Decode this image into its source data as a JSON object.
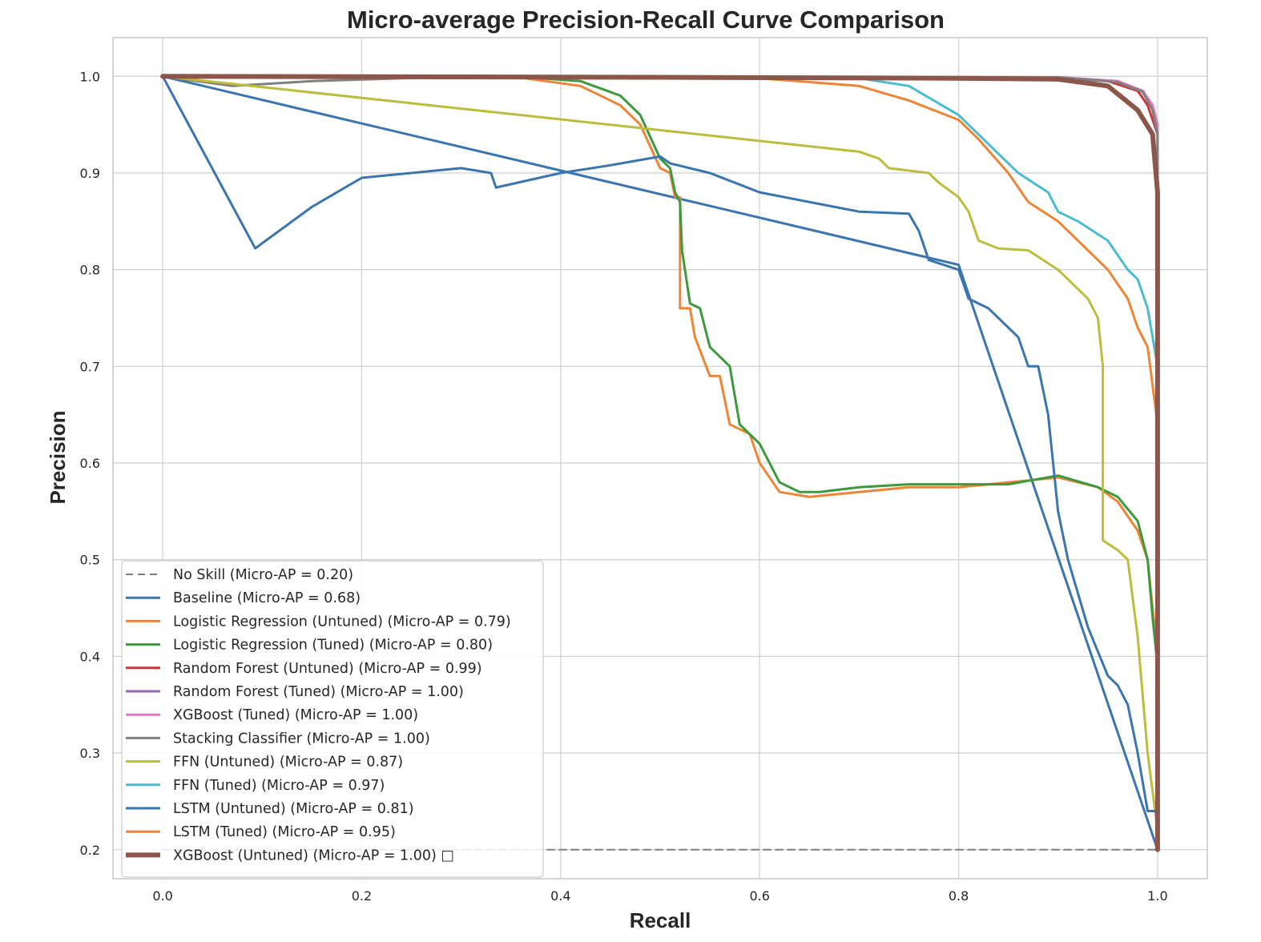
{
  "chart_data": {
    "type": "line",
    "title": "Micro-average Precision-Recall Curve Comparison",
    "xlabel": "Recall",
    "ylabel": "Precision",
    "xlim": [
      -0.05,
      1.05
    ],
    "ylim": [
      0.17,
      1.04
    ],
    "xticks": [
      0.0,
      0.2,
      0.4,
      0.6,
      0.8,
      1.0
    ],
    "yticks": [
      0.2,
      0.3,
      0.4,
      0.5,
      0.6,
      0.7,
      0.8,
      0.9,
      1.0
    ],
    "xtick_labels": [
      "0.0",
      "0.2",
      "0.4",
      "0.6",
      "0.8",
      "1.0"
    ],
    "ytick_labels": [
      "0.2",
      "0.3",
      "0.4",
      "0.5",
      "0.6",
      "0.7",
      "0.8",
      "0.9",
      "1.0"
    ],
    "grid": true,
    "legend_position": "lower-left",
    "series": [
      {
        "name": "No Skill (Micro-AP = 0.20)",
        "color": "#808080",
        "dashed": true,
        "width": 2,
        "points": [
          [
            0,
            0.2
          ],
          [
            1.0,
            0.2
          ]
        ]
      },
      {
        "name": "Baseline (Micro-AP = 0.68)",
        "color": "#3a75b0",
        "width": 3,
        "points": [
          [
            0,
            1.0
          ],
          [
            0.8,
            0.805
          ],
          [
            1.0,
            0.2
          ]
        ]
      },
      {
        "name": "Logistic Regression (Untuned) (Micro-AP = 0.79)",
        "color": "#ee8536",
        "width": 3,
        "points": [
          [
            0,
            1.0
          ],
          [
            0.35,
            1.0
          ],
          [
            0.42,
            0.99
          ],
          [
            0.46,
            0.97
          ],
          [
            0.48,
            0.95
          ],
          [
            0.5,
            0.905
          ],
          [
            0.51,
            0.9
          ],
          [
            0.515,
            0.875
          ],
          [
            0.52,
            0.875
          ],
          [
            0.52,
            0.76
          ],
          [
            0.53,
            0.76
          ],
          [
            0.535,
            0.73
          ],
          [
            0.55,
            0.69
          ],
          [
            0.56,
            0.69
          ],
          [
            0.57,
            0.64
          ],
          [
            0.59,
            0.63
          ],
          [
            0.6,
            0.6
          ],
          [
            0.62,
            0.57
          ],
          [
            0.65,
            0.565
          ],
          [
            0.7,
            0.57
          ],
          [
            0.75,
            0.575
          ],
          [
            0.8,
            0.575
          ],
          [
            0.85,
            0.58
          ],
          [
            0.9,
            0.585
          ],
          [
            0.94,
            0.575
          ],
          [
            0.96,
            0.56
          ],
          [
            0.98,
            0.53
          ],
          [
            0.99,
            0.5
          ],
          [
            0.995,
            0.45
          ],
          [
            1.0,
            0.4
          ]
        ]
      },
      {
        "name": "Logistic Regression (Tuned) (Micro-AP = 0.80)",
        "color": "#3c9a3c",
        "width": 3,
        "points": [
          [
            0,
            1.0
          ],
          [
            0.35,
            1.0
          ],
          [
            0.42,
            0.995
          ],
          [
            0.46,
            0.98
          ],
          [
            0.48,
            0.96
          ],
          [
            0.5,
            0.915
          ],
          [
            0.51,
            0.905
          ],
          [
            0.515,
            0.88
          ],
          [
            0.52,
            0.87
          ],
          [
            0.522,
            0.82
          ],
          [
            0.53,
            0.765
          ],
          [
            0.54,
            0.76
          ],
          [
            0.55,
            0.72
          ],
          [
            0.57,
            0.7
          ],
          [
            0.575,
            0.67
          ],
          [
            0.58,
            0.64
          ],
          [
            0.6,
            0.62
          ],
          [
            0.62,
            0.58
          ],
          [
            0.64,
            0.57
          ],
          [
            0.66,
            0.57
          ],
          [
            0.7,
            0.575
          ],
          [
            0.75,
            0.578
          ],
          [
            0.8,
            0.578
          ],
          [
            0.85,
            0.578
          ],
          [
            0.9,
            0.587
          ],
          [
            0.94,
            0.575
          ],
          [
            0.96,
            0.565
          ],
          [
            0.98,
            0.54
          ],
          [
            0.99,
            0.5
          ],
          [
            0.995,
            0.44
          ],
          [
            1.0,
            0.39
          ]
        ]
      },
      {
        "name": "Random Forest (Untuned) (Micro-AP = 0.99)",
        "color": "#c83a3a",
        "width": 3,
        "points": [
          [
            0,
            1.0
          ],
          [
            0.9,
            0.998
          ],
          [
            0.95,
            0.995
          ],
          [
            0.98,
            0.985
          ],
          [
            0.99,
            0.97
          ],
          [
            1.0,
            0.94
          ],
          [
            1.0,
            0.2
          ]
        ]
      },
      {
        "name": "Random Forest (Tuned) (Micro-AP = 1.00)",
        "color": "#9467bd",
        "width": 3,
        "points": [
          [
            0,
            1.0
          ],
          [
            0.9,
            0.999
          ],
          [
            0.96,
            0.995
          ],
          [
            0.985,
            0.985
          ],
          [
            0.995,
            0.97
          ],
          [
            1.0,
            0.95
          ],
          [
            1.0,
            0.2
          ]
        ]
      },
      {
        "name": "XGBoost (Tuned) (Micro-AP = 1.00)",
        "color": "#e377c2",
        "width": 3,
        "points": [
          [
            0,
            1.0
          ],
          [
            0.9,
            0.999
          ],
          [
            0.96,
            0.995
          ],
          [
            0.985,
            0.985
          ],
          [
            0.995,
            0.97
          ],
          [
            1.0,
            0.95
          ],
          [
            1.0,
            0.2
          ]
        ]
      },
      {
        "name": "Stacking Classifier (Micro-AP = 1.00)",
        "color": "#808080",
        "width": 3,
        "points": [
          [
            0,
            1.0
          ],
          [
            0.07,
            0.99
          ],
          [
            0.15,
            0.995
          ],
          [
            0.3,
            1.0
          ],
          [
            0.9,
            0.999
          ],
          [
            0.96,
            0.994
          ],
          [
            0.985,
            0.984
          ],
          [
            0.995,
            0.965
          ],
          [
            1.0,
            0.94
          ],
          [
            1.0,
            0.2
          ]
        ]
      },
      {
        "name": "FFN (Untuned) (Micro-AP = 0.87)",
        "color": "#bcbd3c",
        "width": 3,
        "points": [
          [
            0,
            1.0
          ],
          [
            0.7,
            0.922
          ],
          [
            0.72,
            0.915
          ],
          [
            0.73,
            0.905
          ],
          [
            0.77,
            0.9
          ],
          [
            0.78,
            0.89
          ],
          [
            0.8,
            0.875
          ],
          [
            0.81,
            0.86
          ],
          [
            0.82,
            0.83
          ],
          [
            0.84,
            0.822
          ],
          [
            0.87,
            0.82
          ],
          [
            0.9,
            0.8
          ],
          [
            0.91,
            0.79
          ],
          [
            0.93,
            0.77
          ],
          [
            0.94,
            0.75
          ],
          [
            0.945,
            0.7
          ],
          [
            0.945,
            0.52
          ],
          [
            0.96,
            0.51
          ],
          [
            0.97,
            0.5
          ],
          [
            0.98,
            0.42
          ],
          [
            0.99,
            0.3
          ],
          [
            1.0,
            0.22
          ]
        ]
      },
      {
        "name": "FFN (Tuned) (Micro-AP = 0.97)",
        "color": "#4bbccf",
        "width": 3,
        "points": [
          [
            0,
            1.0
          ],
          [
            0.7,
            0.998
          ],
          [
            0.75,
            0.99
          ],
          [
            0.8,
            0.96
          ],
          [
            0.83,
            0.93
          ],
          [
            0.86,
            0.9
          ],
          [
            0.89,
            0.88
          ],
          [
            0.9,
            0.86
          ],
          [
            0.92,
            0.85
          ],
          [
            0.95,
            0.83
          ],
          [
            0.97,
            0.8
          ],
          [
            0.98,
            0.79
          ],
          [
            0.99,
            0.76
          ],
          [
            1.0,
            0.7
          ]
        ]
      },
      {
        "name": "LSTM (Untuned) (Micro-AP = 0.81)",
        "color": "#3a75b0",
        "width": 3,
        "points": [
          [
            0,
            1.0
          ],
          [
            0.093,
            0.822
          ],
          [
            0.15,
            0.865
          ],
          [
            0.2,
            0.895
          ],
          [
            0.3,
            0.905
          ],
          [
            0.33,
            0.9
          ],
          [
            0.335,
            0.885
          ],
          [
            0.4,
            0.9
          ],
          [
            0.45,
            0.908
          ],
          [
            0.5,
            0.917
          ],
          [
            0.51,
            0.91
          ],
          [
            0.55,
            0.9
          ],
          [
            0.6,
            0.88
          ],
          [
            0.65,
            0.87
          ],
          [
            0.7,
            0.86
          ],
          [
            0.75,
            0.858
          ],
          [
            0.76,
            0.84
          ],
          [
            0.77,
            0.81
          ],
          [
            0.8,
            0.8
          ],
          [
            0.81,
            0.77
          ],
          [
            0.83,
            0.76
          ],
          [
            0.86,
            0.73
          ],
          [
            0.87,
            0.7
          ],
          [
            0.88,
            0.7
          ],
          [
            0.89,
            0.65
          ],
          [
            0.9,
            0.55
          ],
          [
            0.91,
            0.5
          ],
          [
            0.93,
            0.43
          ],
          [
            0.95,
            0.38
          ],
          [
            0.96,
            0.37
          ],
          [
            0.97,
            0.35
          ],
          [
            0.98,
            0.3
          ],
          [
            0.99,
            0.24
          ],
          [
            1.0,
            0.24
          ]
        ]
      },
      {
        "name": "LSTM (Tuned) (Micro-AP = 0.95)",
        "color": "#ee8536",
        "width": 3,
        "points": [
          [
            0,
            1.0
          ],
          [
            0.6,
            0.998
          ],
          [
            0.7,
            0.99
          ],
          [
            0.75,
            0.975
          ],
          [
            0.8,
            0.955
          ],
          [
            0.82,
            0.935
          ],
          [
            0.85,
            0.9
          ],
          [
            0.87,
            0.87
          ],
          [
            0.9,
            0.85
          ],
          [
            0.93,
            0.82
          ],
          [
            0.95,
            0.8
          ],
          [
            0.97,
            0.77
          ],
          [
            0.98,
            0.74
          ],
          [
            0.99,
            0.72
          ],
          [
            1.0,
            0.64
          ]
        ]
      },
      {
        "name": "XGBoost (Untuned) (Micro-AP = 1.00) □",
        "color": "#8c564b",
        "width": 6,
        "points": [
          [
            0,
            1.0
          ],
          [
            0.5,
            0.999
          ],
          [
            0.8,
            0.998
          ],
          [
            0.9,
            0.997
          ],
          [
            0.95,
            0.99
          ],
          [
            0.98,
            0.965
          ],
          [
            0.995,
            0.94
          ],
          [
            1.0,
            0.88
          ],
          [
            1.0,
            0.2
          ]
        ]
      }
    ]
  }
}
